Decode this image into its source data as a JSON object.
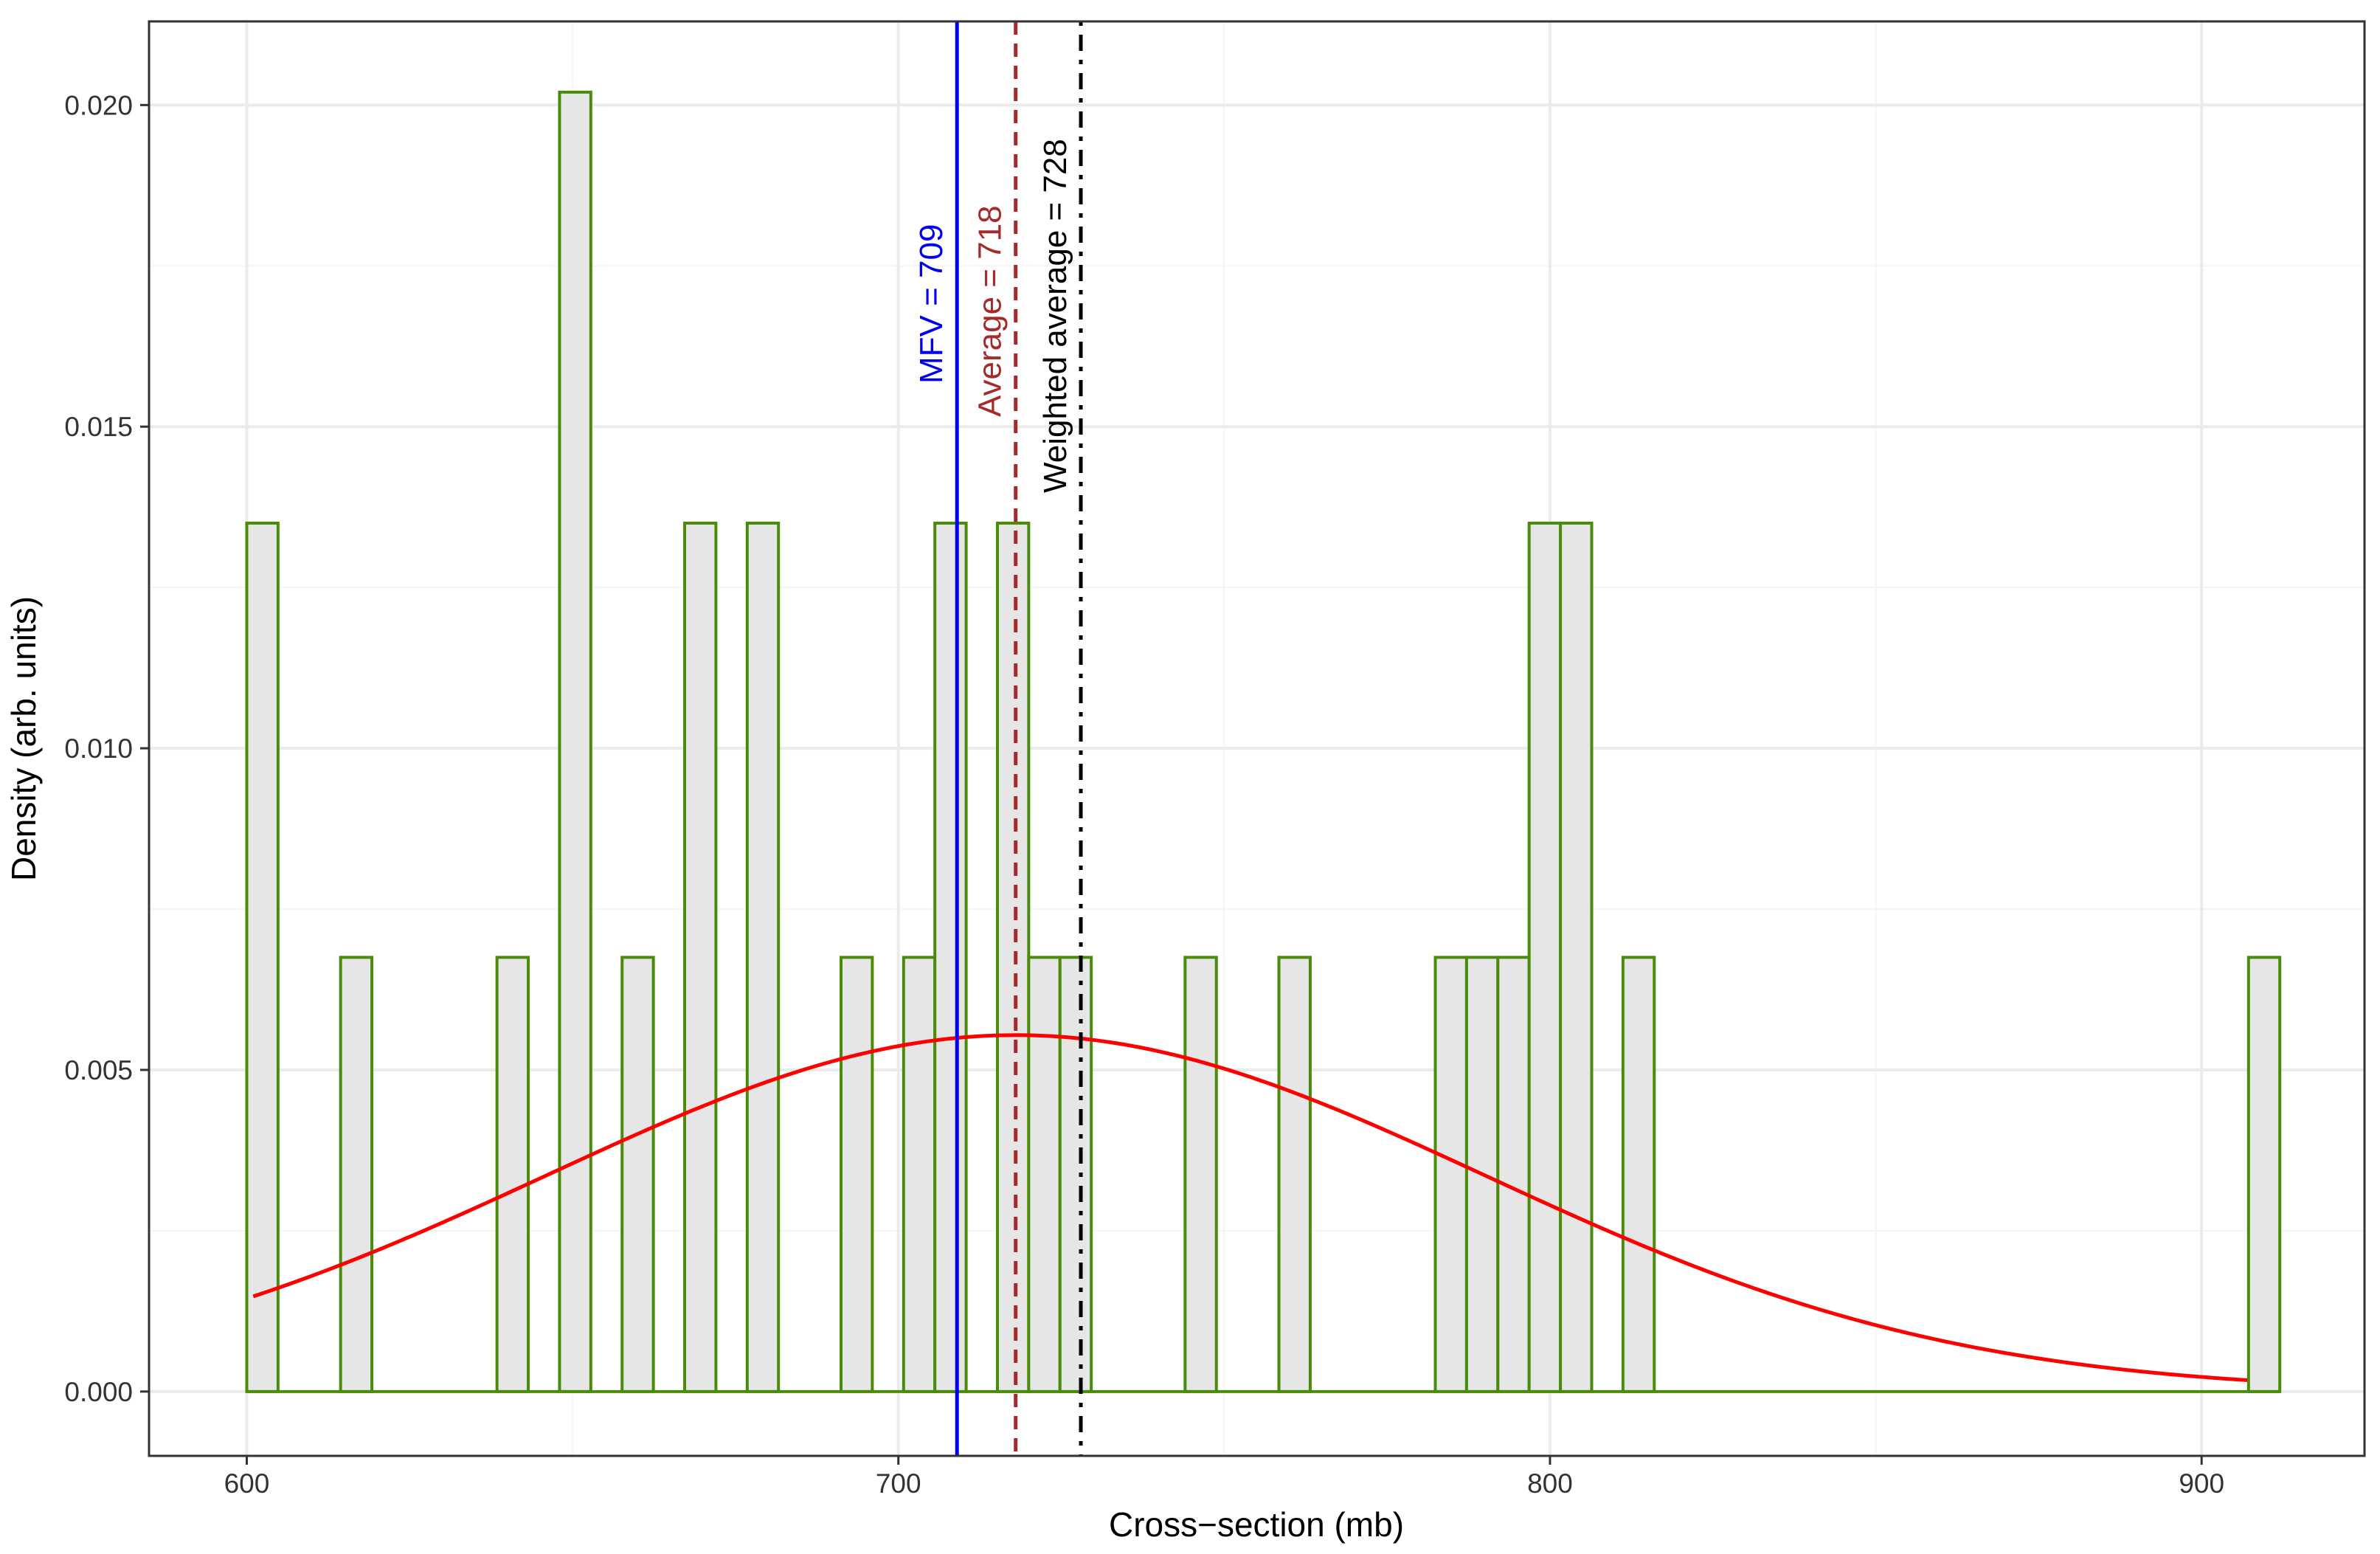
{
  "chart_data": {
    "type": "bar",
    "subtype": "histogram_with_density_curve",
    "xlabel": "Cross−section (mb)",
    "ylabel": "Density (arb. units)",
    "xlim": [
      585,
      925
    ],
    "ylim": [
      -0.001,
      0.0213
    ],
    "x_ticks": [
      600,
      700,
      800,
      900
    ],
    "x_tick_labels": [
      "600",
      "700",
      "800",
      "900"
    ],
    "y_ticks": [
      0.0,
      0.005,
      0.01,
      0.015,
      0.02
    ],
    "y_tick_labels": [
      "0.000",
      "0.005",
      "0.010",
      "0.015",
      "0.020"
    ],
    "grid": true,
    "bin_width": 4.8,
    "bins": [
      {
        "x_start": 600.0,
        "x_end": 604.8,
        "density": 0.0135
      },
      {
        "x_start": 614.4,
        "x_end": 619.2,
        "density": 0.00675
      },
      {
        "x_start": 638.4,
        "x_end": 643.2,
        "density": 0.00675
      },
      {
        "x_start": 648.0,
        "x_end": 652.8,
        "density": 0.0202
      },
      {
        "x_start": 657.6,
        "x_end": 662.4,
        "density": 0.00675
      },
      {
        "x_start": 667.2,
        "x_end": 672.0,
        "density": 0.0135
      },
      {
        "x_start": 676.8,
        "x_end": 681.6,
        "density": 0.0135
      },
      {
        "x_start": 691.2,
        "x_end": 696.0,
        "density": 0.00675
      },
      {
        "x_start": 700.8,
        "x_end": 705.6,
        "density": 0.00675
      },
      {
        "x_start": 705.6,
        "x_end": 710.4,
        "density": 0.0135
      },
      {
        "x_start": 715.2,
        "x_end": 720.0,
        "density": 0.0135
      },
      {
        "x_start": 720.0,
        "x_end": 724.8,
        "density": 0.00675
      },
      {
        "x_start": 724.8,
        "x_end": 729.6,
        "density": 0.00675
      },
      {
        "x_start": 734.4,
        "x_end": 739.2,
        "density": 0.0
      },
      {
        "x_start": 744.0,
        "x_end": 748.8,
        "density": 0.00675
      },
      {
        "x_start": 758.4,
        "x_end": 763.2,
        "density": 0.00675
      },
      {
        "x_start": 782.4,
        "x_end": 787.2,
        "density": 0.00675
      },
      {
        "x_start": 787.2,
        "x_end": 792.0,
        "density": 0.00675
      },
      {
        "x_start": 792.0,
        "x_end": 796.8,
        "density": 0.00675
      },
      {
        "x_start": 796.8,
        "x_end": 801.6,
        "density": 0.0135
      },
      {
        "x_start": 801.6,
        "x_end": 806.4,
        "density": 0.0135
      },
      {
        "x_start": 811.2,
        "x_end": 816.0,
        "density": 0.00675
      },
      {
        "x_start": 907.2,
        "x_end": 912.0,
        "density": 0.00675
      }
    ],
    "histogram_range": [
      600,
      912
    ],
    "density_curve": {
      "mean": 718,
      "sd": 72,
      "x_range": [
        601,
        907
      ]
    },
    "vlines": [
      {
        "label": "MFV = 709",
        "x": 709,
        "style": "solid"
      },
      {
        "label": "Average = 718",
        "x": 718,
        "style": "dashed"
      },
      {
        "label": "Weighted average = 728",
        "x": 728,
        "style": "dotdash"
      }
    ],
    "colors": {
      "bar_fill": "#e6e6e6",
      "bar_outline": "#4a8c0a",
      "curve": "#ff0000",
      "mfv": "#0000ee",
      "average": "#a52a2a",
      "weighted_average": "#000000",
      "grid_major": "#ebebeb",
      "grid_minor": "#f5f5f5",
      "panel_border": "#333333"
    }
  }
}
